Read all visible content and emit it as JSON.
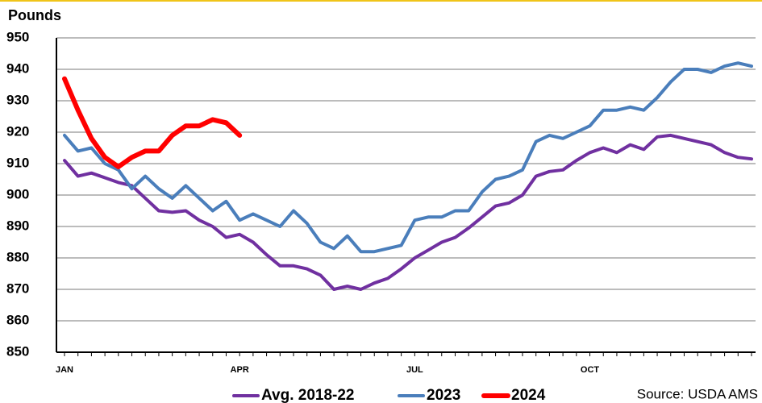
{
  "chart_data": {
    "type": "line",
    "y_label": "Pounds",
    "source": "Source: USDA AMS",
    "categories": [
      "JAN",
      null,
      null,
      null,
      null,
      null,
      null,
      null,
      null,
      null,
      null,
      null,
      null,
      "APR",
      null,
      null,
      null,
      null,
      null,
      null,
      null,
      null,
      null,
      null,
      null,
      null,
      "JUL",
      null,
      null,
      null,
      null,
      null,
      null,
      null,
      null,
      null,
      null,
      null,
      null,
      "OCT",
      null,
      null,
      null,
      null,
      null,
      null,
      null,
      null,
      null,
      null,
      null,
      null
    ],
    "series": [
      {
        "name": "Avg. 2018-22",
        "color": "#7030a0",
        "values": [
          911,
          906,
          907,
          905.5,
          904,
          903,
          899,
          895,
          894.5,
          895,
          892,
          890,
          886.5,
          887.5,
          885,
          881,
          877.5,
          877.5,
          876.5,
          874.5,
          870,
          871,
          870,
          872,
          873.5,
          876.5,
          880,
          882.5,
          885,
          886.5,
          889.5,
          893,
          896.5,
          897.5,
          900,
          906,
          907.5,
          908,
          911,
          913.5,
          915,
          913.5,
          916,
          914.5,
          918.5,
          919,
          918,
          917,
          916,
          913.5,
          912,
          911.5
        ]
      },
      {
        "name": "2023",
        "color": "#4a7ebb",
        "values": [
          919,
          914,
          915,
          910,
          908,
          902,
          906,
          902,
          899,
          903,
          899,
          895,
          898,
          892,
          894,
          892,
          890,
          895,
          891,
          885,
          883,
          887,
          882,
          882,
          883,
          884,
          892,
          893,
          893,
          895,
          895,
          901,
          905,
          906,
          908,
          917,
          919,
          918,
          920,
          922,
          927,
          927,
          928,
          927,
          931,
          936,
          940,
          940,
          939,
          941,
          942,
          941
        ]
      },
      {
        "name": "2024",
        "color": "#ff0000",
        "values": [
          937,
          927,
          918,
          912,
          909,
          912,
          914,
          914,
          919,
          922,
          922,
          924,
          923,
          919,
          null,
          null,
          null,
          null,
          null,
          null,
          null,
          null,
          null,
          null,
          null,
          null,
          null,
          null,
          null,
          null,
          null,
          null,
          null,
          null,
          null,
          null,
          null,
          null,
          null,
          null,
          null,
          null,
          null,
          null,
          null,
          null,
          null,
          null,
          null,
          null,
          null,
          null
        ]
      }
    ],
    "ylim": [
      850,
      950
    ],
    "yticks": [
      850,
      860,
      870,
      880,
      890,
      900,
      910,
      920,
      930,
      940,
      950
    ],
    "grid": true,
    "legend": "bottom"
  }
}
